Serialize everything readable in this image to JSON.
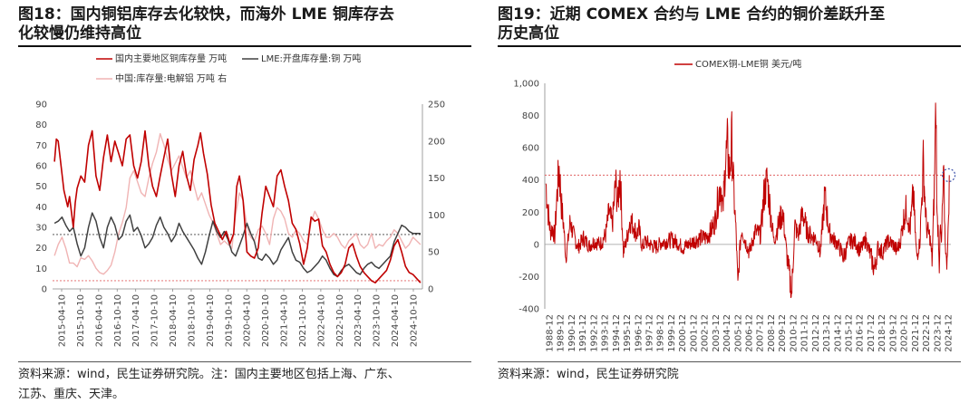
{
  "left": {
    "title_lines": [
      "图18：国内铜铝库存去化较快，而海外 LME 铜库存去",
      "化较慢仍维持高位"
    ],
    "source_lines": [
      "资料来源：wind，民生证券研究院。注：国内主要地区包括上海、广东、",
      "江苏、重庆、天津。"
    ]
  },
  "right": {
    "title_lines": [
      "图19：近期 COMEX 合约与 LME 合约的铜价差跃升至",
      "历史高位"
    ],
    "source_lines": [
      "资料来源：wind，民生证券研究院"
    ]
  },
  "colors": {
    "red": "#c00000",
    "grey": "#404040",
    "pink": "#f0b4b4",
    "refline_red": "#e06060",
    "refline_dark": "#404040",
    "highlight_circle": "#3a4fa8"
  },
  "chart_data": [
    {
      "type": "line",
      "title": "",
      "dual_axis": true,
      "legend": [
        "国内主要地区铜库存量 万吨",
        "LME:开盘库存量:铜 万吨",
        "中国:库存量:电解铝 万吨 右"
      ],
      "y_left_range": [
        0,
        90
      ],
      "y_left_ticks": [
        "0",
        "10",
        "20",
        "30",
        "40",
        "50",
        "60",
        "70",
        "80",
        "90"
      ],
      "y_right_range": [
        0,
        250
      ],
      "y_right_ticks": [
        "0",
        "50",
        "100",
        "150",
        "200",
        "250"
      ],
      "x_ticks": [
        "2015-04-10",
        "2015-10-10",
        "2016-04-10",
        "2016-10-10",
        "2017-04-10",
        "2017-10-10",
        "2018-04-10",
        "2018-10-10",
        "2019-04-10",
        "2019-10-10",
        "2020-04-10",
        "2020-10-10",
        "2021-04-10",
        "2021-10-10",
        "2022-04-10",
        "2022-10-10",
        "2023-04-10",
        "2023-10-10",
        "2024-04-10",
        "2024-10-10"
      ],
      "x_range": [
        2015.2,
        2025.0
      ],
      "reference_lines": [
        {
          "series": "LME:开盘库存量:铜 万吨",
          "value": 26.5
        },
        {
          "series": "国内主要地区铜库存量 万吨",
          "value": 4
        }
      ],
      "series": [
        {
          "name": "国内主要地区铜库存量 万吨",
          "axis": "left",
          "x": [
            2015.25,
            2015.3,
            2015.35,
            2015.4,
            2015.5,
            2015.6,
            2015.65,
            2015.75,
            2015.8,
            2015.85,
            2015.95,
            2016.05,
            2016.15,
            2016.25,
            2016.35,
            2016.45,
            2016.55,
            2016.65,
            2016.75,
            2016.85,
            2016.95,
            2017.05,
            2017.15,
            2017.25,
            2017.35,
            2017.45,
            2017.55,
            2017.65,
            2017.75,
            2017.85,
            2017.95,
            2018.05,
            2018.15,
            2018.25,
            2018.35,
            2018.45,
            2018.55,
            2018.65,
            2018.75,
            2018.85,
            2018.95,
            2019.05,
            2019.12,
            2019.2,
            2019.3,
            2019.4,
            2019.5,
            2019.6,
            2019.7,
            2019.8,
            2019.9,
            2020.0,
            2020.08,
            2020.15,
            2020.25,
            2020.35,
            2020.45,
            2020.55,
            2020.65,
            2020.75,
            2020.85,
            2020.95,
            2021.05,
            2021.15,
            2021.25,
            2021.35,
            2021.45,
            2021.55,
            2021.65,
            2021.75,
            2021.85,
            2021.95,
            2022.05,
            2022.15,
            2022.25,
            2022.35,
            2022.45,
            2022.55,
            2022.65,
            2022.75,
            2022.85,
            2022.95,
            2023.05,
            2023.15,
            2023.25,
            2023.35,
            2023.45,
            2023.55,
            2023.65,
            2023.75,
            2023.85,
            2023.95,
            2024.05,
            2024.15,
            2024.25,
            2024.35,
            2024.45,
            2024.55,
            2024.65,
            2024.75,
            2024.85,
            2024.95
          ],
          "y": [
            62,
            73,
            72,
            64,
            48,
            40,
            45,
            30,
            42,
            49,
            55,
            52,
            70,
            77,
            55,
            48,
            64,
            75,
            62,
            72,
            66,
            60,
            73,
            75,
            60,
            54,
            62,
            77,
            60,
            50,
            45,
            55,
            64,
            73,
            56,
            45,
            60,
            67,
            55,
            48,
            63,
            70,
            76,
            66,
            56,
            41,
            32,
            28,
            24,
            28,
            22,
            27,
            50,
            55,
            43,
            18,
            16,
            15,
            20,
            37,
            50,
            45,
            40,
            55,
            58,
            50,
            43,
            32,
            29,
            22,
            12,
            20,
            35,
            33,
            34,
            21,
            18,
            12,
            8,
            6,
            8,
            12,
            20,
            22,
            16,
            11,
            8,
            6,
            4,
            3,
            5,
            7,
            9,
            14,
            21,
            24,
            18,
            11,
            8,
            7,
            5,
            3
          ]
        },
        {
          "name": "LME:开盘库存量:铜 万吨",
          "axis": "left",
          "x": [
            2015.25,
            2015.35,
            2015.45,
            2015.55,
            2015.65,
            2015.75,
            2015.85,
            2015.95,
            2016.05,
            2016.15,
            2016.25,
            2016.35,
            2016.45,
            2016.55,
            2016.65,
            2016.75,
            2016.85,
            2016.95,
            2017.05,
            2017.15,
            2017.25,
            2017.35,
            2017.45,
            2017.55,
            2017.65,
            2017.75,
            2017.85,
            2017.95,
            2018.05,
            2018.15,
            2018.25,
            2018.35,
            2018.45,
            2018.55,
            2018.65,
            2018.75,
            2018.85,
            2018.95,
            2019.05,
            2019.15,
            2019.25,
            2019.35,
            2019.45,
            2019.55,
            2019.65,
            2019.75,
            2019.85,
            2019.95,
            2020.05,
            2020.15,
            2020.25,
            2020.35,
            2020.45,
            2020.55,
            2020.65,
            2020.75,
            2020.85,
            2020.95,
            2021.05,
            2021.15,
            2021.25,
            2021.35,
            2021.45,
            2021.55,
            2021.65,
            2021.75,
            2021.85,
            2021.95,
            2022.05,
            2022.15,
            2022.25,
            2022.35,
            2022.45,
            2022.55,
            2022.65,
            2022.75,
            2022.85,
            2022.95,
            2023.05,
            2023.15,
            2023.25,
            2023.35,
            2023.45,
            2023.55,
            2023.65,
            2023.75,
            2023.85,
            2023.95,
            2024.05,
            2024.15,
            2024.25,
            2024.35,
            2024.45,
            2024.55,
            2024.65,
            2024.75,
            2024.85,
            2024.95
          ],
          "y": [
            32,
            33,
            35,
            31,
            28,
            30,
            22,
            16,
            20,
            30,
            37,
            33,
            25,
            20,
            30,
            35,
            31,
            24,
            26,
            33,
            36,
            28,
            30,
            26,
            20,
            22,
            25,
            31,
            35,
            30,
            27,
            23,
            26,
            32,
            28,
            25,
            22,
            19,
            15,
            12,
            18,
            26,
            33,
            28,
            25,
            28,
            24,
            18,
            16,
            21,
            26,
            32,
            27,
            23,
            15,
            14,
            17,
            15,
            12,
            14,
            19,
            22,
            25,
            18,
            14,
            13,
            10,
            8,
            9,
            11,
            13,
            16,
            14,
            10,
            7,
            6,
            9,
            11,
            12,
            10,
            8,
            7,
            10,
            12,
            13,
            11,
            10,
            12,
            14,
            16,
            23,
            27,
            31,
            30,
            28,
            27,
            27,
            27
          ]
        },
        {
          "name": "中国:库存量:电解铝 万吨 右",
          "axis": "right",
          "x": [
            2015.25,
            2015.35,
            2015.45,
            2015.55,
            2015.65,
            2015.75,
            2015.85,
            2015.95,
            2016.05,
            2016.15,
            2016.25,
            2016.35,
            2016.45,
            2016.55,
            2016.65,
            2016.75,
            2016.85,
            2016.95,
            2017.05,
            2017.15,
            2017.25,
            2017.35,
            2017.45,
            2017.55,
            2017.65,
            2017.75,
            2017.85,
            2017.95,
            2018.05,
            2018.15,
            2018.25,
            2018.35,
            2018.45,
            2018.55,
            2018.65,
            2018.75,
            2018.85,
            2018.95,
            2019.05,
            2019.15,
            2019.25,
            2019.35,
            2019.45,
            2019.55,
            2019.65,
            2019.75,
            2019.85,
            2019.95,
            2020.05,
            2020.15,
            2020.25,
            2020.35,
            2020.45,
            2020.55,
            2020.65,
            2020.75,
            2020.85,
            2020.95,
            2021.05,
            2021.15,
            2021.25,
            2021.35,
            2021.45,
            2021.55,
            2021.65,
            2021.75,
            2021.85,
            2021.95,
            2022.05,
            2022.15,
            2022.25,
            2022.35,
            2022.45,
            2022.55,
            2022.65,
            2022.75,
            2022.85,
            2022.95,
            2023.05,
            2023.15,
            2023.25,
            2023.35,
            2023.45,
            2023.55,
            2023.65,
            2023.75,
            2023.85,
            2023.95,
            2024.05,
            2024.15,
            2024.25,
            2024.35,
            2024.45,
            2024.55,
            2024.65,
            2024.75,
            2024.85,
            2024.95
          ],
          "y": [
            45,
            60,
            70,
            55,
            35,
            35,
            30,
            42,
            40,
            45,
            38,
            28,
            22,
            20,
            25,
            32,
            50,
            75,
            90,
            110,
            150,
            160,
            145,
            130,
            125,
            150,
            170,
            185,
            210,
            195,
            175,
            160,
            170,
            180,
            165,
            150,
            160,
            140,
            120,
            130,
            115,
            100,
            90,
            75,
            60,
            65,
            60,
            55,
            100,
            130,
            120,
            85,
            70,
            65,
            80,
            85,
            75,
            60,
            95,
            110,
            105,
            95,
            75,
            70,
            80,
            75,
            65,
            60,
            90,
            105,
            95,
            80,
            70,
            70,
            75,
            70,
            60,
            55,
            65,
            70,
            75,
            60,
            55,
            60,
            75,
            55,
            60,
            58,
            65,
            70,
            80,
            75,
            65,
            55,
            60,
            70,
            65,
            60
          ]
        }
      ]
    },
    {
      "type": "line",
      "title": "",
      "legend": [
        "COMEX铜-LME铜 美元/吨"
      ],
      "y_range": [
        -400,
        1000
      ],
      "y_ticks": [
        "1,000",
        "800",
        "600",
        "400",
        "200",
        "0",
        "-200",
        "-400"
      ],
      "x_ticks": [
        "1988-12",
        "1989-12",
        "1990-12",
        "1991-12",
        "1992-12",
        "1993-12",
        "1994-12",
        "1995-12",
        "1996-12",
        "1997-12",
        "1998-12",
        "1999-12",
        "2000-12",
        "2001-12",
        "2002-12",
        "2003-12",
        "2004-12",
        "2005-12",
        "2006-12",
        "2007-12",
        "2008-12",
        "2009-12",
        "2010-12",
        "2011-12",
        "2012-12",
        "2013-12",
        "2014-12",
        "2015-12",
        "2016-12",
        "2017-12",
        "2018-12",
        "2019-12",
        "2020-12",
        "2021-12",
        "2022-12",
        "2023-12",
        "2024-12"
      ],
      "x_range": [
        1988.5,
        2025.2
      ],
      "reference_lines": [
        {
          "value": 430
        }
      ],
      "highlight": {
        "x": 2025.0,
        "y": 430
      },
      "series": [
        {
          "name": "COMEX铜-LME铜 美元/吨",
          "x": [
            1988.6,
            1988.8,
            1989.0,
            1989.2,
            1989.4,
            1989.6,
            1989.8,
            1990.0,
            1990.2,
            1990.4,
            1990.6,
            1990.8,
            1991.0,
            1991.5,
            1992.0,
            1992.5,
            1993.0,
            1993.5,
            1994.0,
            1994.3,
            1994.6,
            1994.9,
            1995.1,
            1995.3,
            1995.6,
            1995.9,
            1996.2,
            1996.5,
            1996.8,
            1997.0,
            1997.3,
            1997.6,
            1998.0,
            1998.5,
            1999.0,
            1999.5,
            2000.0,
            2000.5,
            2001.0,
            2001.5,
            2002.0,
            2002.5,
            2003.0,
            2003.5,
            2003.9,
            2004.2,
            2004.4,
            2004.6,
            2004.8,
            2005.0,
            2005.2,
            2005.4,
            2005.6,
            2005.8,
            2005.95,
            2006.1,
            2006.3,
            2006.6,
            2007.0,
            2007.5,
            2008.0,
            2008.3,
            2008.6,
            2008.9,
            2009.2,
            2009.6,
            2010.0,
            2010.4,
            2010.8,
            2010.95,
            2011.1,
            2011.4,
            2011.8,
            2012.2,
            2012.6,
            2013.0,
            2013.4,
            2013.8,
            2014.2,
            2014.6,
            2015.0,
            2015.5,
            2016.0,
            2016.5,
            2017.0,
            2017.5,
            2018.0,
            2018.3,
            2018.6,
            2019.0,
            2019.5,
            2020.0,
            2020.3,
            2020.6,
            2020.9,
            2021.2,
            2021.5,
            2021.8,
            2022.1,
            2022.4,
            2022.7,
            2023.0,
            2023.3,
            2023.5,
            2023.7,
            2023.85,
            2023.95,
            2024.05,
            2024.15,
            2024.25,
            2024.35,
            2024.45,
            2024.55,
            2024.65,
            2024.8,
            2024.95,
            2025.05
          ],
          "y": [
            380,
            200,
            80,
            100,
            50,
            300,
            470,
            250,
            120,
            -80,
            20,
            150,
            80,
            -20,
            40,
            -10,
            20,
            0,
            60,
            200,
            120,
            380,
            250,
            450,
            -50,
            30,
            150,
            120,
            60,
            100,
            -20,
            20,
            0,
            -20,
            10,
            20,
            30,
            10,
            -20,
            0,
            20,
            40,
            40,
            80,
            150,
            300,
            380,
            200,
            500,
            600,
            450,
            640,
            300,
            50,
            -280,
            -50,
            100,
            20,
            -50,
            80,
            60,
            300,
            400,
            200,
            20,
            120,
            200,
            -80,
            -310,
            -100,
            120,
            50,
            200,
            80,
            50,
            40,
            -50,
            300,
            80,
            30,
            0,
            -80,
            20,
            20,
            -40,
            30,
            -80,
            -160,
            -20,
            -50,
            20,
            0,
            -40,
            10,
            150,
            230,
            80,
            320,
            -80,
            20,
            500,
            100,
            50,
            -100,
            350,
            900,
            150,
            100,
            -120,
            100,
            0,
            250,
            420,
            100,
            -140,
            60,
            430
          ]
        }
      ]
    }
  ]
}
